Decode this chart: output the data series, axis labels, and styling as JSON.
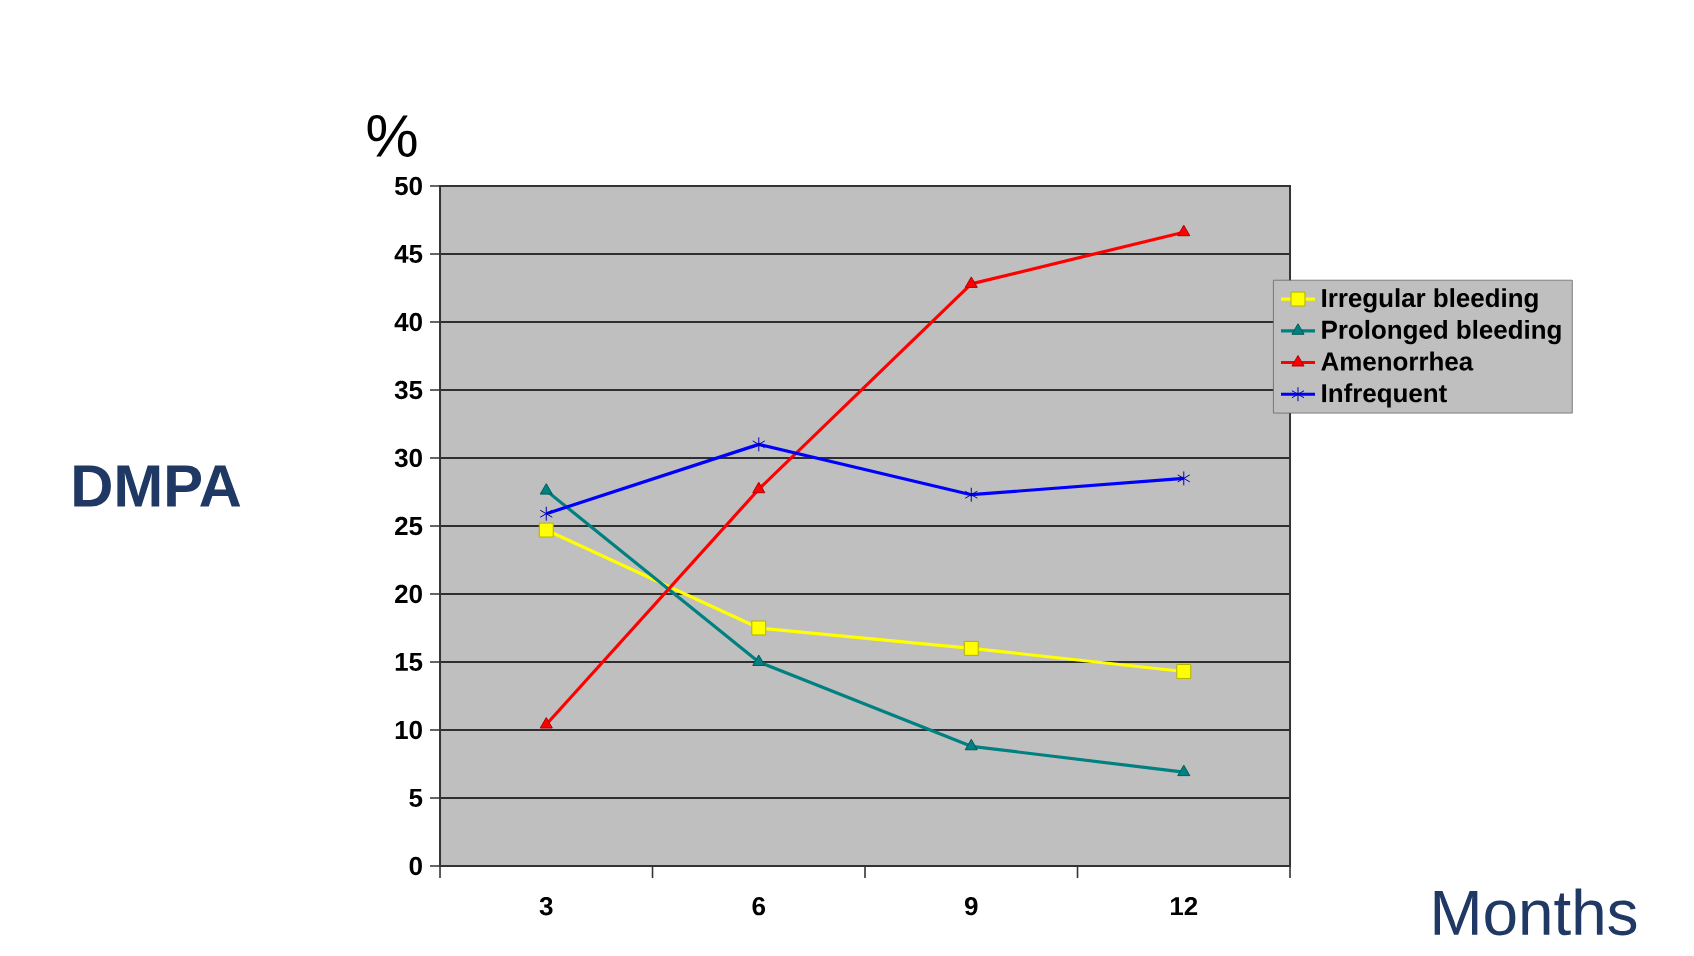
{
  "chart_data": {
    "type": "line",
    "title": "DMPA",
    "xlabel": "Months",
    "ylabel": "%",
    "categories": [
      "3",
      "6",
      "9",
      "12"
    ],
    "series": [
      {
        "name": "Irregular bleeding",
        "color": "#ffff00",
        "marker": "square",
        "values": [
          24.7,
          17.5,
          16.0,
          14.3
        ]
      },
      {
        "name": "Prolonged bleeding",
        "color": "#008080",
        "marker": "triangle",
        "values": [
          27.6,
          15.0,
          8.8,
          6.9
        ]
      },
      {
        "name": "Amenorrhea",
        "color": "#ff0000",
        "marker": "triangle",
        "values": [
          10.4,
          27.7,
          42.8,
          46.6
        ]
      },
      {
        "name": "Infrequent",
        "color": "#0000ff",
        "marker": "cross",
        "values": [
          25.9,
          31.0,
          27.3,
          28.5
        ]
      }
    ],
    "ylim": [
      0,
      50
    ],
    "yticks": [
      0,
      5,
      10,
      15,
      20,
      25,
      30,
      35,
      40,
      45,
      50
    ],
    "grid": "y",
    "legend": "right"
  }
}
